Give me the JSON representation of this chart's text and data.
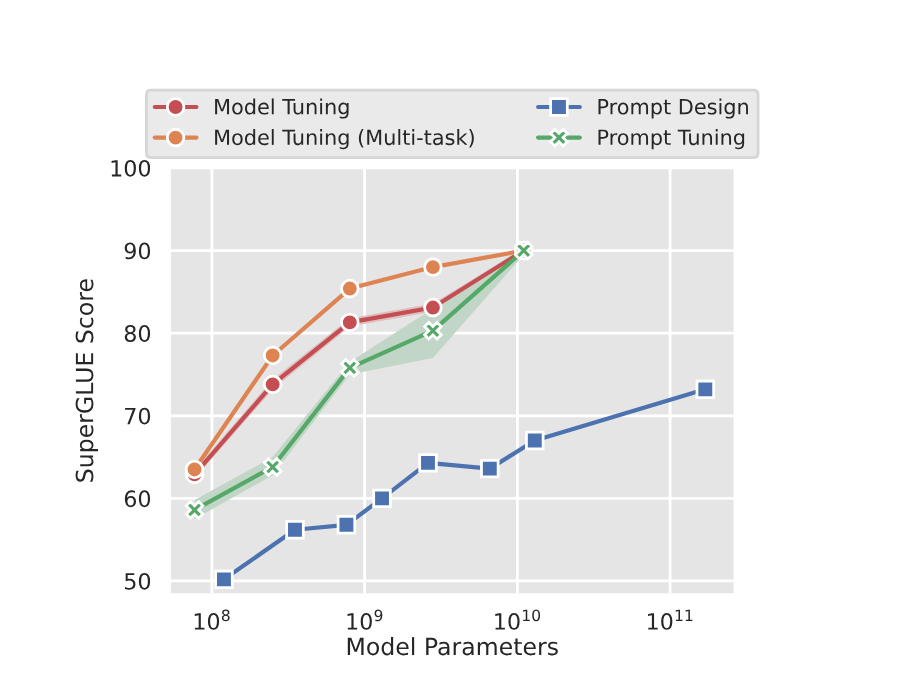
{
  "chart_data": {
    "type": "line",
    "xlabel": "Model Parameters",
    "ylabel": "SuperGLUE Score",
    "log": "x",
    "xlim": [
      54000000.0,
      260000000000.0
    ],
    "ylim": [
      48.5,
      100
    ],
    "xticks": [
      {
        "value": 100000000.0,
        "label": "10$^{8}$"
      },
      {
        "value": 1000000000.0,
        "label": "10$^{9}$"
      },
      {
        "value": 10000000000.0,
        "label": "10$^{10}$"
      },
      {
        "value": 100000000000.0,
        "label": "10$^{11}$"
      }
    ],
    "yticks": [
      50,
      60,
      70,
      80,
      90,
      100
    ],
    "grid": true,
    "legend": "top",
    "series": [
      {
        "name": "Model Tuning",
        "color": "#c44e52",
        "marker": "circle",
        "x": [
          77000000.0,
          250000000.0,
          800000000.0,
          2800000000.0,
          11000000000.0
        ],
        "values": [
          62.9,
          73.8,
          81.3,
          83.1,
          90.0
        ],
        "lower": [
          62.4,
          73.2,
          80.8,
          82.6,
          89.7
        ],
        "upper": [
          63.4,
          74.4,
          81.8,
          83.6,
          90.3
        ]
      },
      {
        "name": "Model Tuning (Multi-task)",
        "color": "#dd8452",
        "marker": "circle",
        "x": [
          77000000.0,
          250000000.0,
          800000000.0,
          2800000000.0,
          11000000000.0
        ],
        "values": [
          63.5,
          77.3,
          85.4,
          88.0,
          90.0
        ]
      },
      {
        "name": "Prompt Design",
        "color": "#4c72b0",
        "marker": "square",
        "x": [
          120000000.0,
          350000000.0,
          760000000.0,
          1300000000.0,
          2600000000.0,
          6600000000.0,
          13000000000.0,
          170000000000.0
        ],
        "values": [
          50.2,
          56.2,
          56.8,
          60.0,
          64.3,
          63.6,
          67.0,
          73.2
        ]
      },
      {
        "name": "Prompt Tuning",
        "color": "#55a868",
        "marker": "cross",
        "x": [
          77000000.0,
          250000000.0,
          800000000.0,
          2800000000.0,
          11000000000.0
        ],
        "values": [
          58.6,
          63.8,
          75.8,
          80.3,
          90.0
        ],
        "lower": [
          57.5,
          62.8,
          75.0,
          77.0,
          89.5
        ],
        "upper": [
          59.8,
          65.0,
          76.5,
          83.0,
          90.5
        ]
      }
    ]
  }
}
